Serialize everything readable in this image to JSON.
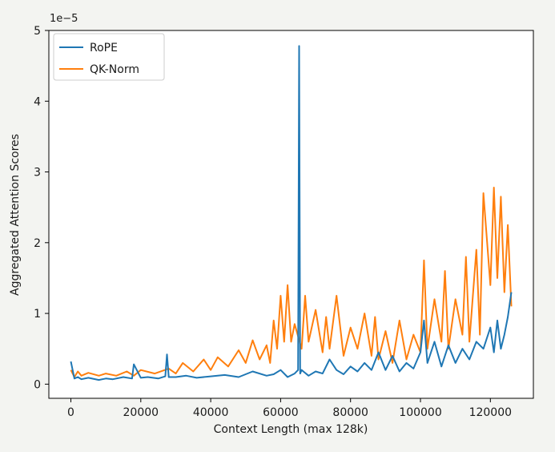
{
  "chart_data": {
    "type": "line",
    "xlabel": "Context Length (max 128k)",
    "ylabel": "Aggregated Attention Scores",
    "y_offset_text": "1e−5",
    "xlim": [
      -6300,
      132300
    ],
    "ylim": [
      -0.2,
      5.0
    ],
    "x_ticks": [
      0,
      20000,
      40000,
      60000,
      80000,
      100000,
      120000
    ],
    "x_tick_labels": [
      "0",
      "20000",
      "40000",
      "60000",
      "80000",
      "100000",
      "120000"
    ],
    "y_ticks": [
      0,
      1,
      2,
      3,
      4,
      5
    ],
    "y_tick_labels": [
      "0",
      "1",
      "2",
      "3",
      "4",
      "5"
    ],
    "legend": {
      "placement": "top-left",
      "entries": [
        "RoPE",
        "QK-Norm"
      ]
    },
    "grid": false,
    "series": [
      {
        "name": "RoPE",
        "color": "#1f77b4",
        "x": [
          0,
          1000,
          2000,
          3000,
          5000,
          8000,
          10000,
          12000,
          15000,
          17500,
          18000,
          20000,
          22000,
          25000,
          27000,
          27500,
          28000,
          30000,
          33000,
          36000,
          40000,
          44000,
          48000,
          52000,
          56000,
          58000,
          60000,
          62000,
          64000,
          65000,
          65300,
          65600,
          66000,
          68000,
          70000,
          72000,
          74000,
          76000,
          78000,
          80000,
          82000,
          84000,
          86000,
          88000,
          90000,
          92000,
          94000,
          96000,
          98000,
          100000,
          101000,
          102000,
          104000,
          106000,
          108000,
          110000,
          112000,
          114000,
          116000,
          118000,
          120000,
          121000,
          122000,
          123000,
          124000,
          125000,
          126000
        ],
        "y": [
          0.32,
          0.08,
          0.1,
          0.07,
          0.09,
          0.06,
          0.08,
          0.07,
          0.1,
          0.08,
          0.28,
          0.09,
          0.1,
          0.08,
          0.11,
          0.42,
          0.1,
          0.1,
          0.12,
          0.09,
          0.11,
          0.13,
          0.1,
          0.18,
          0.12,
          0.14,
          0.2,
          0.1,
          0.15,
          0.2,
          4.78,
          0.15,
          0.2,
          0.12,
          0.18,
          0.15,
          0.35,
          0.2,
          0.14,
          0.25,
          0.18,
          0.3,
          0.2,
          0.45,
          0.2,
          0.4,
          0.18,
          0.3,
          0.22,
          0.45,
          0.9,
          0.3,
          0.6,
          0.25,
          0.55,
          0.3,
          0.5,
          0.35,
          0.6,
          0.5,
          0.8,
          0.45,
          0.9,
          0.5,
          0.7,
          0.95,
          1.3
        ]
      },
      {
        "name": "QK-Norm",
        "color": "#ff7f0e",
        "x": [
          0,
          1000,
          2000,
          3000,
          5000,
          8000,
          10000,
          13000,
          16000,
          18000,
          20000,
          24000,
          28000,
          30000,
          32000,
          35000,
          38000,
          40000,
          42000,
          45000,
          48000,
          50000,
          52000,
          54000,
          56000,
          57000,
          58000,
          59000,
          60000,
          61000,
          62000,
          63000,
          64000,
          66000,
          67000,
          68000,
          70000,
          72000,
          73000,
          74000,
          76000,
          78000,
          80000,
          82000,
          84000,
          86000,
          87000,
          88000,
          90000,
          92000,
          94000,
          96000,
          98000,
          100000,
          101000,
          102000,
          104000,
          106000,
          107000,
          108000,
          110000,
          112000,
          113000,
          114000,
          116000,
          117000,
          118000,
          120000,
          121000,
          122000,
          123000,
          124000,
          125000,
          126000
        ],
        "y": [
          0.2,
          0.1,
          0.18,
          0.12,
          0.16,
          0.12,
          0.15,
          0.12,
          0.18,
          0.12,
          0.2,
          0.15,
          0.22,
          0.15,
          0.3,
          0.18,
          0.35,
          0.2,
          0.38,
          0.25,
          0.48,
          0.3,
          0.62,
          0.35,
          0.55,
          0.3,
          0.9,
          0.5,
          1.25,
          0.6,
          1.4,
          0.6,
          0.85,
          0.5,
          1.25,
          0.6,
          1.05,
          0.45,
          0.95,
          0.5,
          1.25,
          0.4,
          0.8,
          0.5,
          1.0,
          0.4,
          0.95,
          0.35,
          0.75,
          0.3,
          0.9,
          0.35,
          0.7,
          0.45,
          1.75,
          0.5,
          1.2,
          0.6,
          1.6,
          0.5,
          1.2,
          0.7,
          1.8,
          0.6,
          1.9,
          0.7,
          2.7,
          1.4,
          2.78,
          1.5,
          2.65,
          1.3,
          2.25,
          1.1
        ]
      }
    ]
  }
}
